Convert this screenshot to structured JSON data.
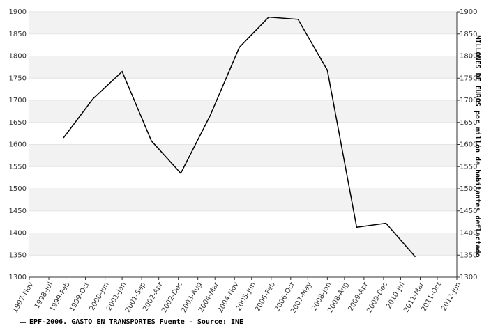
{
  "chart_data": {
    "type": "line",
    "y2_label": "MILLONES DE EUROS por millón de habitantes deflactado",
    "legend": "EPF-2006. GASTO EN TRANSPORTES  Fuente - Source: INE",
    "x": [
      "1999-Jan",
      "2000-Jan",
      "2001-Jan",
      "2002-Jan",
      "2003-Jan",
      "2004-Jan",
      "2005-Jan",
      "2006-Jan",
      "2007-Jan",
      "2008-Jan",
      "2009-Jan",
      "2010-Jan",
      "2011-Jan"
    ],
    "series": [
      {
        "name": "EPF-2006. GASTO EN TRANSPORTES",
        "color": "#000000",
        "values": [
          1615,
          1703,
          1765,
          1608,
          1535,
          1665,
          1820,
          1888,
          1883,
          1768,
          1413,
          1422,
          1346
        ]
      }
    ],
    "xlim": [
      "1997-Nov",
      "2012-Jun"
    ],
    "xticks": [
      "1997-Nov",
      "1998-Jul",
      "1999-Feb",
      "1999-Oct",
      "2000-Jun",
      "2001-Jan",
      "2001-Sep",
      "2002-Apr",
      "2002-Dec",
      "2003-Aug",
      "2004-Mar",
      "2004-Nov",
      "2005-Jun",
      "2006-Feb",
      "2006-Oct",
      "2007-May",
      "2008-Jan",
      "2008-Aug",
      "2009-Apr",
      "2009-Dec",
      "2010-Jul",
      "2011-Mar",
      "2011-Oct",
      "2012-Jun"
    ],
    "ylim": [
      1300,
      1900
    ],
    "yticks": [
      1300,
      1350,
      1400,
      1450,
      1500,
      1550,
      1600,
      1650,
      1700,
      1750,
      1800,
      1850,
      1900
    ],
    "y2lim": [
      1300,
      1900
    ],
    "y2ticks": [
      1300,
      1350,
      1400,
      1450,
      1500,
      1550,
      1600,
      1650,
      1700,
      1750,
      1800,
      1850,
      1900
    ],
    "grid": true,
    "band_color": "#f2f2f2"
  }
}
